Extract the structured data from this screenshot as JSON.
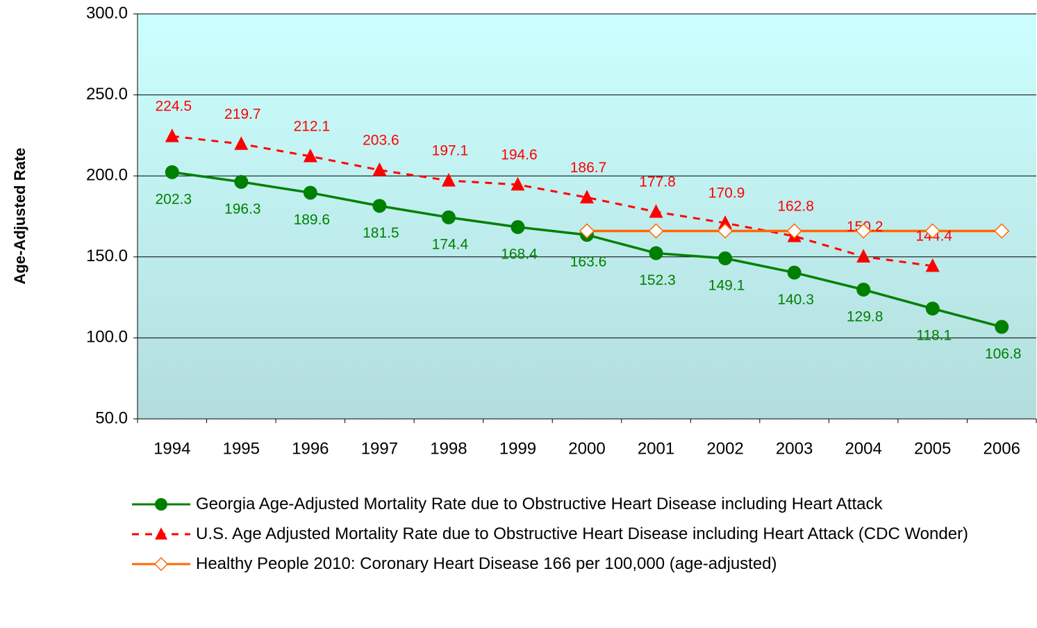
{
  "chart_data": {
    "type": "line",
    "y_label": "Age-Adjusted Rate",
    "categories": [
      "1994",
      "1995",
      "1996",
      "1997",
      "1998",
      "1999",
      "2000",
      "2001",
      "2002",
      "2003",
      "2004",
      "2005",
      "2006"
    ],
    "series": [
      {
        "name": "Georgia Age-Adjusted Mortality Rate due to Obstructive Heart Disease including Heart Attack",
        "color": "#008000",
        "marker": "circle",
        "dash": false,
        "labels": "below",
        "values": [
          202.3,
          196.3,
          189.6,
          181.5,
          174.4,
          168.4,
          163.6,
          152.3,
          149.1,
          140.3,
          129.8,
          118.1,
          106.8
        ]
      },
      {
        "name": "U.S. Age Adjusted Mortality Rate due to Obstructive Heart Disease including Heart Attack (CDC Wonder)",
        "color": "#ff0000",
        "marker": "triangle",
        "dash": true,
        "labels": "above",
        "values": [
          224.5,
          219.7,
          212.1,
          203.6,
          197.1,
          194.6,
          186.7,
          177.8,
          170.9,
          162.8,
          150.2,
          144.4,
          null
        ]
      },
      {
        "name": "Healthy People 2010: Coronary Heart Disease 166 per 100,000 (age-adjusted)",
        "color": "#ff6600",
        "marker": "diamond",
        "dash": false,
        "labels": "none",
        "values": [
          null,
          null,
          null,
          null,
          null,
          null,
          166,
          166,
          166,
          166,
          166,
          166,
          166
        ]
      }
    ],
    "ylim": [
      50,
      300
    ],
    "yticks": [
      {
        "value": 50,
        "label": "50.0"
      },
      {
        "value": 100,
        "label": "100.0"
      },
      {
        "value": 150,
        "label": "150.0"
      },
      {
        "value": 200,
        "label": "200.0"
      },
      {
        "value": 250,
        "label": "250.0"
      },
      {
        "value": 300,
        "label": "300.0"
      }
    ],
    "grid": true
  }
}
